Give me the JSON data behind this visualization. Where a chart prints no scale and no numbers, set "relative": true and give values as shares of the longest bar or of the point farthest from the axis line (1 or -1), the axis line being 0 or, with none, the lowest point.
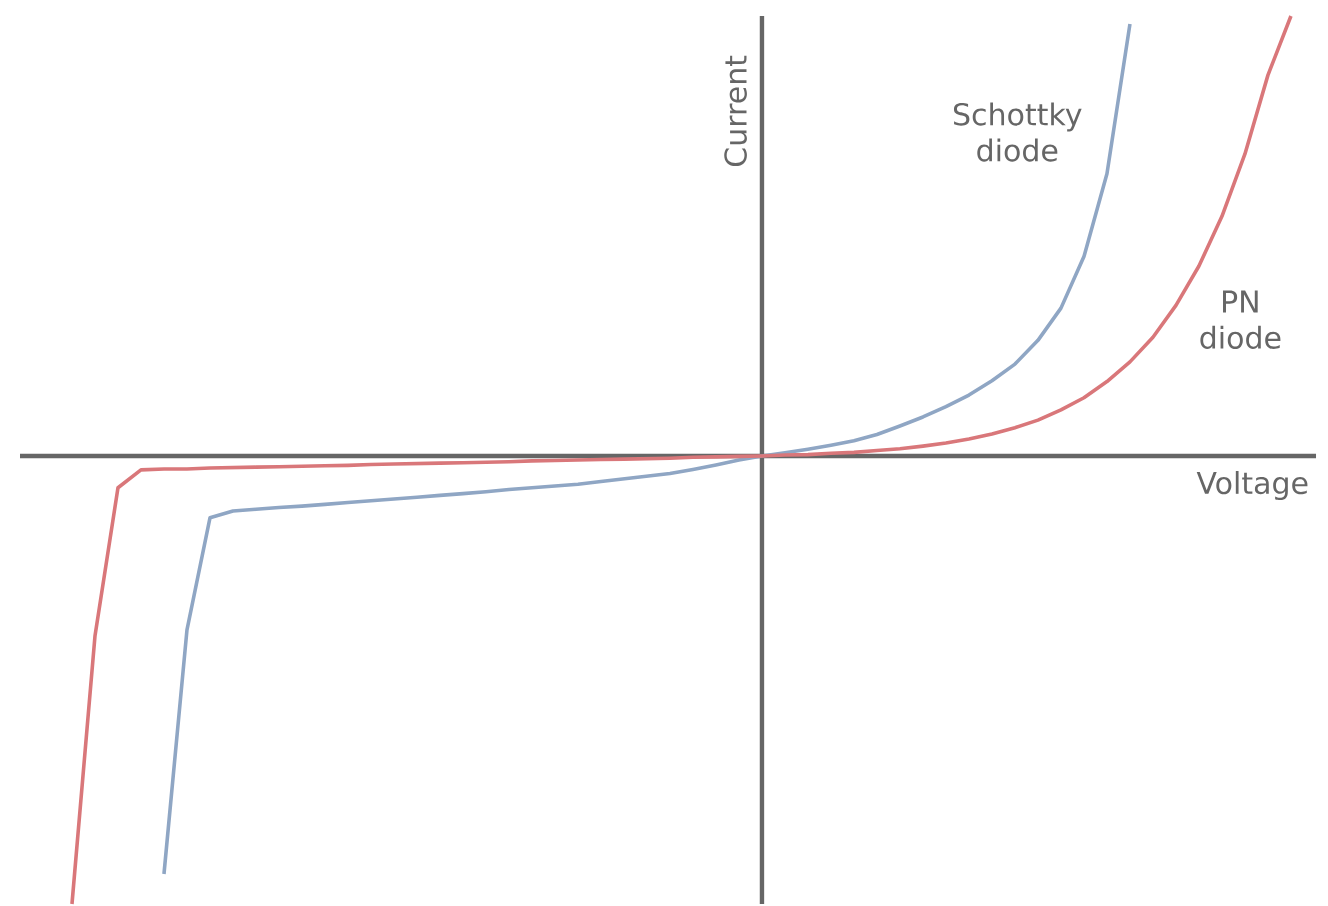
{
  "chart_data": {
    "type": "line",
    "relative": true,
    "xlabel": "Voltage",
    "ylabel": "Current",
    "categories": [
      null,
      null,
      null,
      null,
      null,
      null,
      null,
      null,
      null,
      null,
      null,
      null,
      null,
      null,
      null,
      null,
      null,
      null,
      null,
      null,
      null,
      null,
      null,
      null,
      null,
      null,
      null,
      null,
      null,
      null,
      null,
      null,
      null,
      null,
      null,
      null,
      null,
      null,
      null,
      null,
      null,
      null,
      null,
      null,
      null,
      null,
      null,
      null,
      null,
      null,
      null,
      null,
      null,
      null
    ],
    "series": [
      {
        "name": "Schottky diode",
        "color": "#8fa6c4",
        "values": [
          null,
          null,
          null,
          null,
          -0.933,
          -0.388,
          -0.138,
          -0.123,
          -0.119,
          -0.115,
          -0.112,
          -0.108,
          -0.104,
          -0.1,
          -0.096,
          -0.092,
          -0.088,
          -0.084,
          -0.08,
          -0.075,
          -0.071,
          -0.067,
          -0.063,
          -0.057,
          -0.051,
          -0.045,
          -0.039,
          -0.03,
          -0.02,
          -0.009,
          0,
          0.007,
          0.015,
          0.024,
          0.034,
          0.048,
          0.067,
          0.087,
          0.11,
          0.136,
          0.168,
          0.205,
          0.258,
          0.33,
          0.445,
          0.63,
          0.964,
          null,
          null,
          null,
          null,
          null,
          null,
          null
        ]
      },
      {
        "name": "PN diode",
        "color": "#d9777a",
        "values": [
          -1.0,
          -0.402,
          -0.071,
          -0.031,
          -0.029,
          -0.029,
          -0.027,
          -0.026,
          -0.025,
          -0.024,
          -0.023,
          -0.022,
          -0.021,
          -0.019,
          -0.018,
          -0.017,
          -0.016,
          -0.015,
          -0.014,
          -0.013,
          -0.011,
          -0.01,
          -0.009,
          -0.008,
          -0.007,
          -0.006,
          -0.005,
          -0.003,
          -0.002,
          -0.001,
          0,
          0.002,
          0.003,
          0.006,
          0.008,
          0.012,
          0.016,
          0.022,
          0.029,
          0.038,
          0.049,
          0.063,
          0.08,
          0.103,
          0.13,
          0.166,
          0.21,
          0.265,
          0.336,
          0.424,
          0.535,
          0.674,
          0.85,
          0.982
        ]
      }
    ]
  }
}
